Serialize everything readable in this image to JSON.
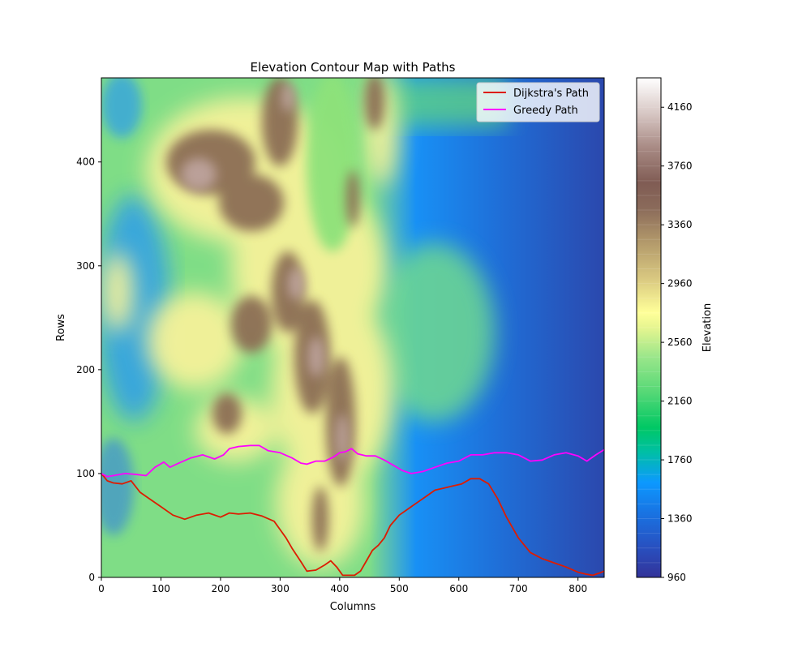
{
  "chart_data": {
    "type": "heatmap",
    "title": "Elevation Contour Map with Paths",
    "xlabel": "Columns",
    "ylabel": "Rows",
    "xlim": [
      0,
      844
    ],
    "ylim": [
      0,
      481
    ],
    "xticks": [
      0,
      100,
      200,
      300,
      400,
      500,
      600,
      700,
      800
    ],
    "yticks": [
      0,
      100,
      200,
      300,
      400
    ],
    "legend_position": "top-right",
    "colorbar": {
      "label": "Elevation",
      "range": [
        960,
        4360
      ],
      "ticks": [
        960,
        1360,
        1760,
        2160,
        2560,
        2960,
        3360,
        3760,
        4160
      ],
      "colormap": "terrain",
      "colors": [
        "#333399",
        "#1e90ff",
        "#00c864",
        "#99e68a",
        "#ffff99",
        "#b39a6b",
        "#805c54",
        "#c8b0ac",
        "#ffffff"
      ]
    },
    "series": [
      {
        "name": "Dijkstra's Path",
        "color": "#dd1c00",
        "x": [
          0,
          10,
          20,
          35,
          50,
          65,
          80,
          100,
          120,
          140,
          160,
          180,
          200,
          215,
          230,
          250,
          270,
          290,
          300,
          310,
          320,
          335,
          345,
          360,
          375,
          385,
          395,
          405,
          415,
          425,
          435,
          445,
          455,
          465,
          475,
          485,
          500,
          515,
          530,
          545,
          560,
          575,
          590,
          605,
          620,
          635,
          650,
          665,
          680,
          700,
          720,
          740,
          760,
          780,
          800,
          815,
          825,
          835,
          844
        ],
        "y": [
          100,
          93,
          91,
          90,
          93,
          82,
          76,
          68,
          60,
          56,
          60,
          62,
          58,
          62,
          61,
          62,
          59,
          54,
          46,
          38,
          28,
          15,
          6,
          7,
          12,
          16,
          10,
          2,
          2,
          2,
          6,
          16,
          26,
          31,
          38,
          50,
          60,
          66,
          72,
          78,
          84,
          86,
          88,
          90,
          95,
          95,
          90,
          76,
          58,
          38,
          24,
          18,
          14,
          10,
          5,
          3,
          2,
          4,
          6
        ]
      },
      {
        "name": "Greedy Path",
        "color": "#ff00ff",
        "x": [
          0,
          10,
          20,
          40,
          60,
          75,
          90,
          105,
          115,
          130,
          150,
          170,
          190,
          205,
          215,
          230,
          250,
          265,
          280,
          300,
          320,
          335,
          345,
          360,
          375,
          390,
          400,
          410,
          420,
          430,
          445,
          460,
          475,
          490,
          505,
          520,
          540,
          560,
          580,
          600,
          620,
          640,
          660,
          680,
          700,
          720,
          740,
          760,
          780,
          800,
          815,
          830,
          844
        ],
        "y": [
          100,
          97,
          98,
          100,
          99,
          98,
          106,
          111,
          106,
          110,
          115,
          118,
          114,
          118,
          124,
          126,
          127,
          127,
          122,
          120,
          115,
          110,
          109,
          112,
          112,
          116,
          120,
          121,
          124,
          119,
          117,
          117,
          113,
          108,
          103,
          100,
          102,
          106,
          110,
          112,
          118,
          118,
          120,
          120,
          118,
          112,
          113,
          118,
          120,
          117,
          112,
          118,
          123
        ]
      }
    ]
  }
}
